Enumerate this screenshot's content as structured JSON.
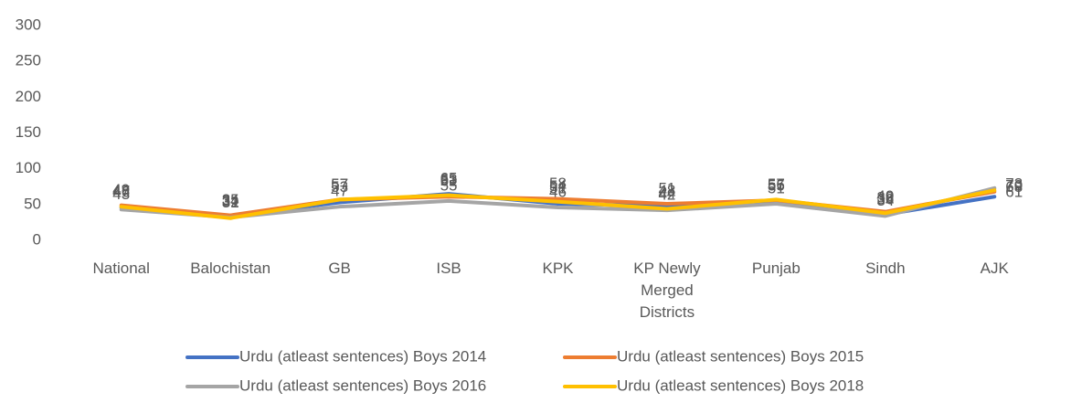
{
  "chart_data": {
    "type": "line",
    "stacked": true,
    "categories": [
      "National",
      "Balochistan",
      "GB",
      "ISB",
      "KPK",
      "KP Newly Merged Districts",
      "Punjab",
      "Sindh",
      "AJK"
    ],
    "series": [
      {
        "name": "Urdu (atleast sentences) Boys 2014",
        "color": "#4472c4",
        "values": [
          46,
          34,
          53,
          65,
          51,
          48,
          55,
          36,
          61
        ]
      },
      {
        "name": "Urdu (atleast sentences) Boys 2015",
        "color": "#ed7d31",
        "values": [
          49,
          35,
          57,
          61,
          58,
          51,
          56,
          40,
          68
        ]
      },
      {
        "name": "Urdu (atleast sentences) Boys 2016",
        "color": "#a5a5a5",
        "values": [
          43,
          32,
          47,
          55,
          46,
          42,
          51,
          34,
          73
        ]
      },
      {
        "name": "Urdu (atleast sentences) Boys 2018",
        "color": "#ffc000",
        "values": [
          47,
          31,
          57,
          63,
          54,
          44,
          57,
          38,
          70
        ]
      }
    ],
    "ylim": [
      0,
      300
    ],
    "yticks": [
      0,
      50,
      100,
      150,
      200,
      250,
      300
    ],
    "grid": false,
    "legend": "bottom"
  }
}
